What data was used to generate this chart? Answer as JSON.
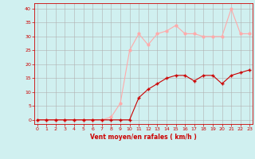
{
  "x_moyen": [
    0,
    1,
    2,
    3,
    4,
    5,
    6,
    7,
    8,
    9,
    10,
    11,
    12,
    13,
    14,
    15,
    16,
    17,
    18,
    19,
    20,
    21,
    22,
    23
  ],
  "y_moyen": [
    0,
    0,
    0,
    0,
    0,
    0,
    0,
    0,
    0,
    0,
    0,
    8,
    11,
    13,
    15,
    16,
    16,
    14,
    16,
    16,
    13,
    16,
    17,
    18
  ],
  "x_rafales": [
    0,
    1,
    2,
    3,
    4,
    5,
    6,
    7,
    8,
    9,
    10,
    11,
    12,
    13,
    14,
    15,
    16,
    17,
    18,
    19,
    20,
    21,
    22,
    23
  ],
  "y_rafales": [
    0,
    0,
    0,
    0,
    0,
    0,
    0,
    0,
    1,
    6,
    25,
    31,
    27,
    31,
    32,
    34,
    31,
    31,
    30,
    30,
    30,
    40,
    31,
    31
  ],
  "color_moyen": "#cc0000",
  "color_rafales": "#ffaaaa",
  "bg_color": "#d0f0f0",
  "grid_color": "#b0b0b0",
  "xlabel": "Vent moyen/en rafales ( km/h )",
  "yticks": [
    0,
    5,
    10,
    15,
    20,
    25,
    30,
    35,
    40
  ],
  "xticks": [
    0,
    1,
    2,
    3,
    4,
    5,
    6,
    7,
    8,
    9,
    10,
    11,
    12,
    13,
    14,
    15,
    16,
    17,
    18,
    19,
    20,
    21,
    22,
    23
  ],
  "xlim": [
    -0.3,
    23.3
  ],
  "ylim": [
    -1.5,
    42
  ]
}
